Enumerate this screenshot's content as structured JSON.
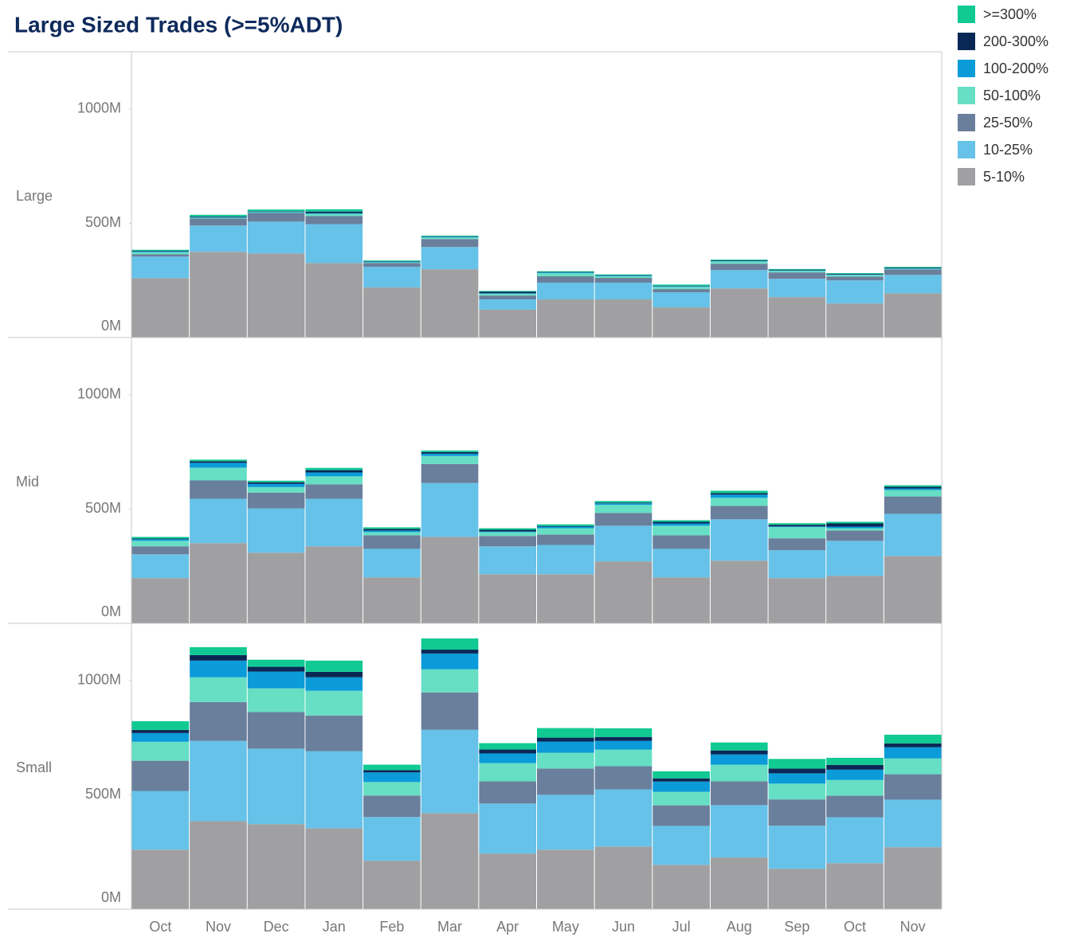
{
  "chart_data": {
    "type": "bar",
    "stacked": true,
    "title": "Large Sized Trades (>=5%ADT)",
    "categories": [
      "Oct",
      "Nov",
      "Dec",
      "Jan",
      "Feb",
      "Mar",
      "Apr",
      "May",
      "Jun",
      "Jul",
      "Aug",
      "Sep",
      "Oct",
      "Nov"
    ],
    "ylim": [
      0,
      1250
    ],
    "yticks": [
      {
        "value": 0,
        "label": "0M"
      },
      {
        "value": 500,
        "label": "500M"
      },
      {
        "value": 1000,
        "label": "1000M"
      }
    ],
    "legend": "right",
    "series": [
      {
        "name": "5-10%",
        "color": "#a0a0a2"
      },
      {
        "name": "10-25%",
        "color": "#66c2e8"
      },
      {
        "name": "25-50%",
        "color": "#6a7f9c"
      },
      {
        "name": "50-100%",
        "color": "#66dfc4"
      },
      {
        "name": "100-200%",
        "color": "#0b9bd9"
      },
      {
        "name": "200-300%",
        "color": "#0a2856"
      },
      {
        "name": ">=300%",
        "color": "#10c993"
      }
    ],
    "panels": [
      {
        "label": "Large",
        "values": [
          [
            260,
            375,
            368,
            326,
            219,
            299,
            122,
            167,
            167,
            132,
            215,
            177,
            149,
            194
          ],
          [
            94,
            115,
            139,
            170,
            90,
            97,
            45,
            73,
            73,
            66,
            80,
            80,
            101,
            80
          ],
          [
            10,
            31,
            38,
            35,
            17,
            35,
            17,
            28,
            21,
            14,
            28,
            28,
            17,
            24
          ],
          [
            10,
            3,
            3,
            10,
            3,
            7,
            7,
            14,
            7,
            10,
            10,
            7,
            7,
            3
          ],
          [
            3,
            3,
            3,
            3,
            3,
            3,
            3,
            3,
            3,
            3,
            2,
            2,
            2,
            2
          ],
          [
            3,
            3,
            2,
            7,
            2,
            2,
            7,
            2,
            2,
            2,
            3,
            3,
            3,
            3
          ],
          [
            4,
            7,
            7,
            10,
            3,
            3,
            3,
            3,
            3,
            5,
            3,
            3,
            3,
            3
          ]
        ]
      },
      {
        "label": "Mid",
        "values": [
          [
            198,
            351,
            309,
            337,
            201,
            378,
            215,
            215,
            271,
            201,
            274,
            198,
            208,
            295
          ],
          [
            104,
            194,
            194,
            208,
            125,
            236,
            122,
            128,
            156,
            125,
            181,
            122,
            153,
            184
          ],
          [
            35,
            80,
            69,
            63,
            59,
            83,
            45,
            45,
            56,
            59,
            59,
            52,
            45,
            76
          ],
          [
            24,
            56,
            24,
            35,
            14,
            35,
            17,
            28,
            35,
            42,
            35,
            49,
            10,
            28
          ],
          [
            7,
            21,
            14,
            17,
            7,
            10,
            3,
            7,
            7,
            10,
            14,
            3,
            7,
            7
          ],
          [
            3,
            7,
            7,
            10,
            7,
            7,
            7,
            3,
            3,
            7,
            7,
            7,
            14,
            7
          ],
          [
            7,
            7,
            7,
            10,
            7,
            7,
            7,
            7,
            7,
            7,
            10,
            7,
            7,
            7
          ]
        ]
      },
      {
        "label": "Small",
        "values": [
          [
            260,
            385,
            372,
            354,
            212,
            420,
            243,
            260,
            274,
            194,
            226,
            177,
            201,
            271
          ],
          [
            257,
            351,
            330,
            337,
            191,
            365,
            219,
            240,
            250,
            170,
            229,
            188,
            201,
            208
          ],
          [
            132,
            170,
            160,
            156,
            94,
            163,
            97,
            115,
            101,
            90,
            104,
            115,
            94,
            111
          ],
          [
            83,
            108,
            104,
            108,
            59,
            101,
            80,
            69,
            73,
            59,
            73,
            69,
            69,
            69
          ],
          [
            38,
            73,
            73,
            59,
            42,
            69,
            42,
            49,
            38,
            45,
            45,
            45,
            45,
            49
          ],
          [
            14,
            24,
            21,
            24,
            10,
            17,
            17,
            17,
            17,
            14,
            17,
            21,
            21,
            17
          ],
          [
            38,
            35,
            31,
            49,
            24,
            49,
            28,
            42,
            38,
            31,
            35,
            42,
            31,
            38
          ]
        ]
      }
    ]
  }
}
